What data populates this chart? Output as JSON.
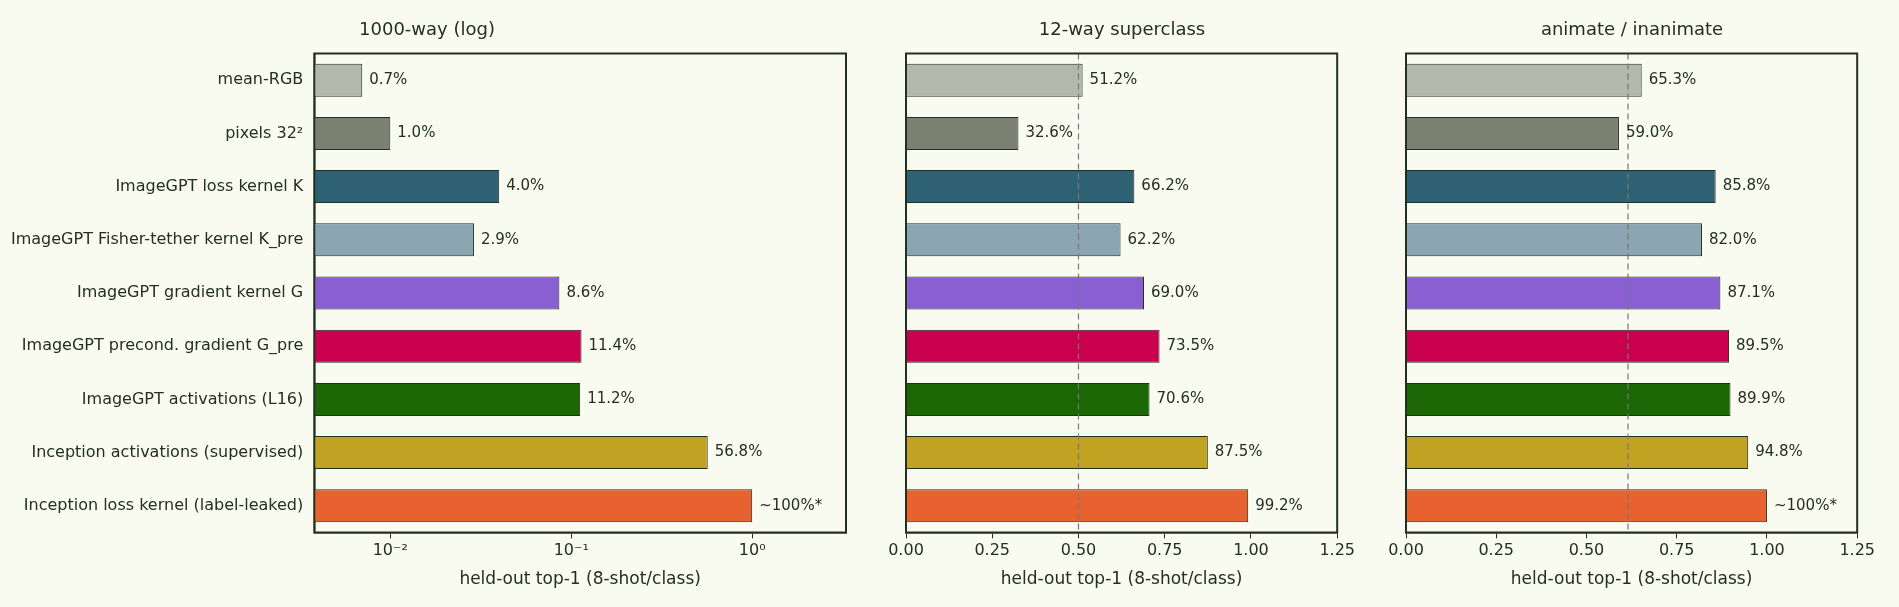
{
  "chart_data": [
    {
      "type": "bar",
      "orientation": "horizontal",
      "title": "1000-way (log)",
      "xlabel": "held-out top-1 (8-shot/class)",
      "log": "x",
      "categories": [
        "mean-RGB",
        "pixels 32²",
        "ImageGPT loss kernel K",
        "ImageGPT Fisher-tether kernel K_pre",
        "ImageGPT gradient kernel G",
        "ImageGPT precond. gradient G_pre",
        "ImageGPT activations (L16)",
        "Inception activations (supervised)",
        "Inception loss kernel (label-leaked)"
      ],
      "values": [
        0.007,
        0.01,
        0.04,
        0.029,
        0.086,
        0.114,
        0.112,
        0.568,
        1.0
      ],
      "colors": [
        "#b3b8ab",
        "#7b8070",
        "#2d6173",
        "#8ca5b2",
        "#8a5fd1",
        "#c8004e",
        "#1b6605",
        "#c2a222",
        "#e8622f"
      ],
      "value_labels": [
        "0.7%",
        "1.0%",
        "4.0%",
        "2.9%",
        "8.6%",
        "11.4%",
        "11.2%",
        "56.8%",
        "~100%*"
      ],
      "xlim": [
        0.0038,
        3.3
      ],
      "xticks": [
        {
          "value": 0.01,
          "label": "10⁻²"
        },
        {
          "value": 0.1,
          "label": "10⁻¹"
        },
        {
          "value": 1,
          "label": "10⁰"
        }
      ]
    },
    {
      "type": "bar",
      "orientation": "horizontal",
      "title": "12-way superclass",
      "xlabel": "held-out top-1 (8-shot/class)",
      "tick_labels": "x",
      "categories": [
        null,
        null,
        null,
        null,
        null,
        null,
        null,
        null,
        null
      ],
      "values": [
        0.512,
        0.326,
        0.662,
        0.622,
        0.69,
        0.735,
        0.706,
        0.875,
        0.992
      ],
      "colors": [
        "#b3b8ab",
        "#7b8070",
        "#2d6173",
        "#8ca5b2",
        "#8a5fd1",
        "#c8004e",
        "#1b6605",
        "#c2a222",
        "#e8622f"
      ],
      "value_labels": [
        "51.2%",
        "32.6%",
        "66.2%",
        "62.2%",
        "69.0%",
        "73.5%",
        "70.6%",
        "87.5%",
        "99.2%"
      ],
      "xlim": [
        0,
        1.25
      ],
      "xticks": [
        {
          "value": 0,
          "label": "0.00"
        },
        {
          "value": 0.25,
          "label": "0.25"
        },
        {
          "value": 0.5,
          "label": "0.50"
        },
        {
          "value": 0.75,
          "label": "0.75"
        },
        {
          "value": 1,
          "label": "1.00"
        },
        {
          "value": 1.25,
          "label": "1.25"
        }
      ],
      "ref_lines": [
        {
          "axis": "x",
          "value": 0.5,
          "color": "#777777",
          "line_style": "dashed"
        }
      ]
    },
    {
      "type": "bar",
      "orientation": "horizontal",
      "title": "animate / inanimate",
      "xlabel": "held-out top-1 (8-shot/class)",
      "tick_labels": "x",
      "categories": [
        null,
        null,
        null,
        null,
        null,
        null,
        null,
        null,
        null
      ],
      "values": [
        0.653,
        0.59,
        0.858,
        0.82,
        0.871,
        0.895,
        0.899,
        0.948,
        1.0
      ],
      "colors": [
        "#b3b8ab",
        "#7b8070",
        "#2d6173",
        "#8ca5b2",
        "#8a5fd1",
        "#c8004e",
        "#1b6605",
        "#c2a222",
        "#e8622f"
      ],
      "value_labels": [
        "65.3%",
        "59.0%",
        "85.8%",
        "82.0%",
        "87.1%",
        "89.5%",
        "89.9%",
        "94.8%",
        "~100%*"
      ],
      "xlim": [
        0,
        1.25
      ],
      "xticks": [
        {
          "value": 0,
          "label": "0.00"
        },
        {
          "value": 0.25,
          "label": "0.25"
        },
        {
          "value": 0.5,
          "label": "0.50"
        },
        {
          "value": 0.75,
          "label": "0.75"
        },
        {
          "value": 1,
          "label": "1.00"
        },
        {
          "value": 1.25,
          "label": "1.25"
        }
      ],
      "ref_lines": [
        {
          "axis": "x",
          "value": 0.615,
          "color": "#777777",
          "line_style": "dashed"
        }
      ]
    }
  ]
}
